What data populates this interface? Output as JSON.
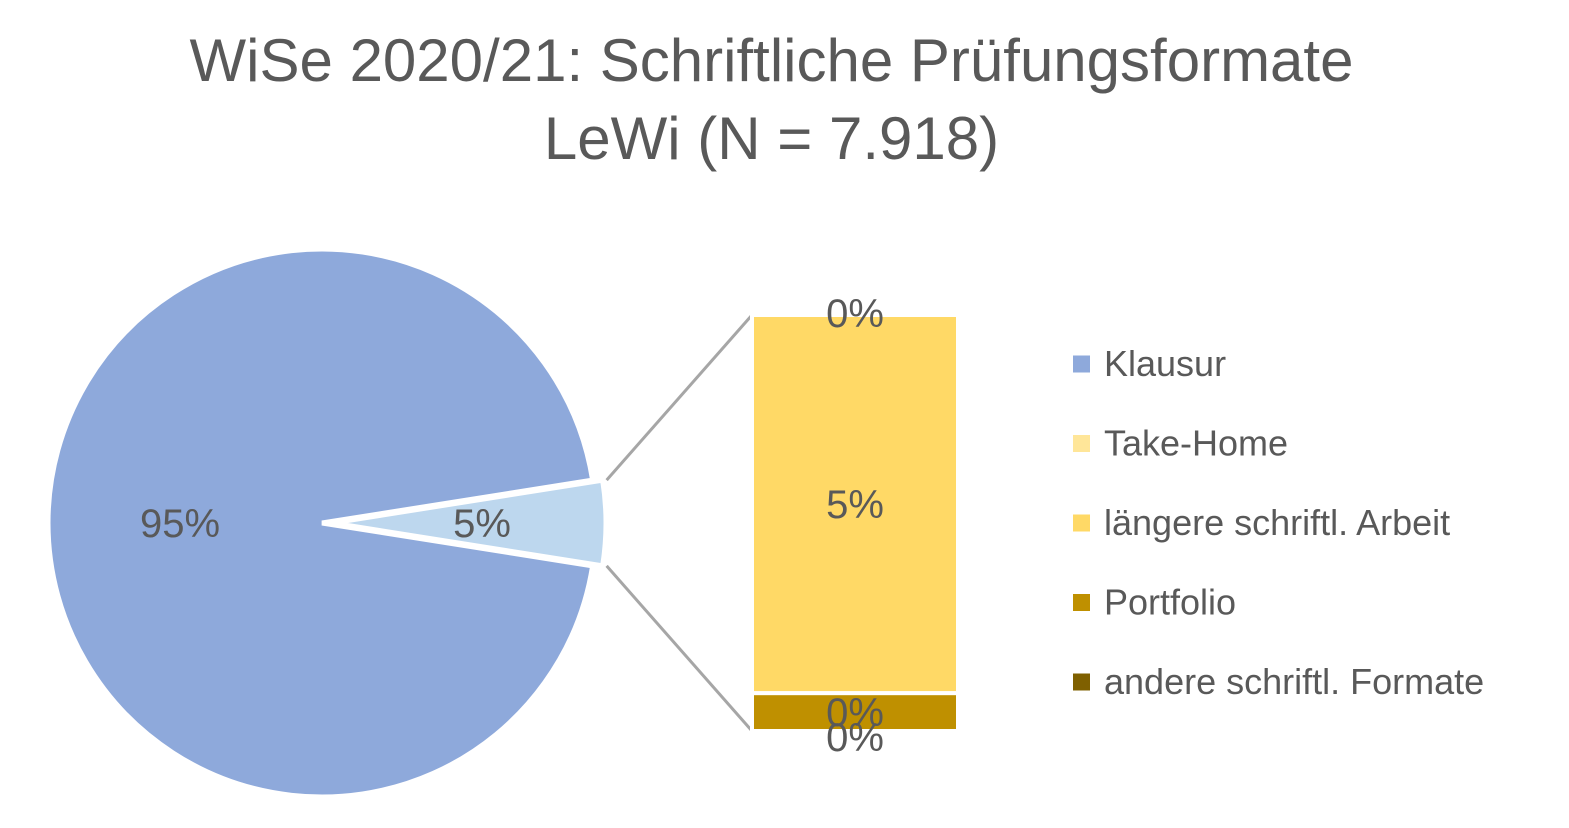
{
  "chart_data": {
    "type": "pie",
    "subtype": "pie-of-bar",
    "title_line1": "WiSe 2020/21: Schriftliche Prüfungsformate",
    "title_line2": "LeWi (N = 7.918)",
    "pie": {
      "slices": [
        {
          "label": "95%",
          "value": 95,
          "color": "#8EA9DB"
        },
        {
          "label": "5%",
          "value": 5,
          "color": "#BDD7EE"
        }
      ]
    },
    "bar": {
      "segments": [
        {
          "name": "Take-Home",
          "value": 0,
          "label": "0%",
          "color": "#FFE699"
        },
        {
          "name": "längere schriftl. Arbeit",
          "value": 5,
          "label": "5%",
          "color": "#FFD966"
        },
        {
          "name": "Portfolio",
          "value": 0.5,
          "label": "0%",
          "color": "#BF9000"
        },
        {
          "name": "andere schriftl. Formate",
          "value": 0,
          "label": "0%",
          "color": "#7F6000"
        }
      ]
    },
    "legend": {
      "position": "right",
      "entries": [
        {
          "name": "Klausur",
          "color": "#8EA9DB"
        },
        {
          "name": "Take-Home",
          "color": "#FFE699"
        },
        {
          "name": "längere schriftl. Arbeit",
          "color": "#FFD966"
        },
        {
          "name": "Portfolio",
          "color": "#BF9000"
        },
        {
          "name": "andere schriftl. Formate",
          "color": "#7F6000"
        }
      ]
    },
    "connector_color": "#A6A6A6"
  }
}
